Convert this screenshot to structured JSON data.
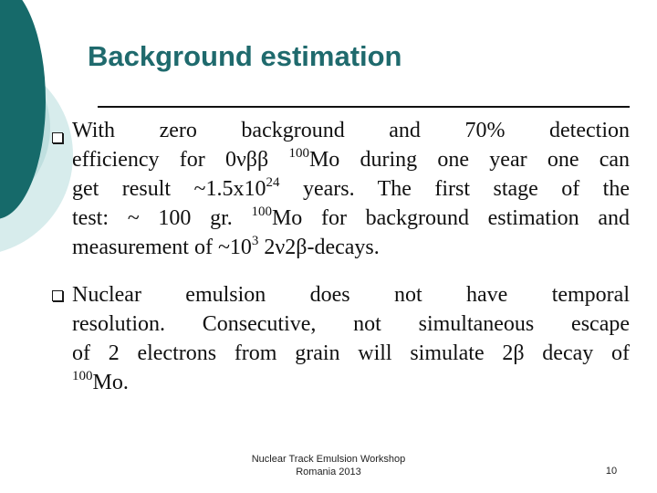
{
  "slide": {
    "title": "Background estimation",
    "bullets": [
      {
        "lines": [
          [
            "With zero background and 70% detection"
          ],
          [
            "efficiency for 0νββ ",
            {
              "sup": "100"
            },
            "Mo during one year one can"
          ],
          [
            "get result ~1.5x10",
            {
              "sup": "24"
            },
            " years. The first stage of the"
          ],
          [
            "test: ~ 100 gr. ",
            {
              "sup": "100"
            },
            "Mo for background estimation and"
          ],
          [
            "measurement of ~10",
            {
              "sup": "3"
            },
            " 2ν2β-decays."
          ]
        ]
      },
      {
        "lines": [
          [
            "Nuclear emulsion does not have temporal"
          ],
          [
            "resolution. Consecutive, not simultaneous escape"
          ],
          [
            "of 2 electrons from grain will simulate 2β decay of"
          ],
          [
            {
              "sup": "100"
            },
            "Mo."
          ]
        ]
      }
    ],
    "footer_line1": "Nuclear Track Emulsion Workshop",
    "footer_line2": "Romania 2013",
    "page_number": "10"
  },
  "colors": {
    "title": "#1f6a6d",
    "decor_dark": "#166a6a",
    "decor_light": "#d7ecec",
    "decor_mid": "#a8d2d2"
  }
}
